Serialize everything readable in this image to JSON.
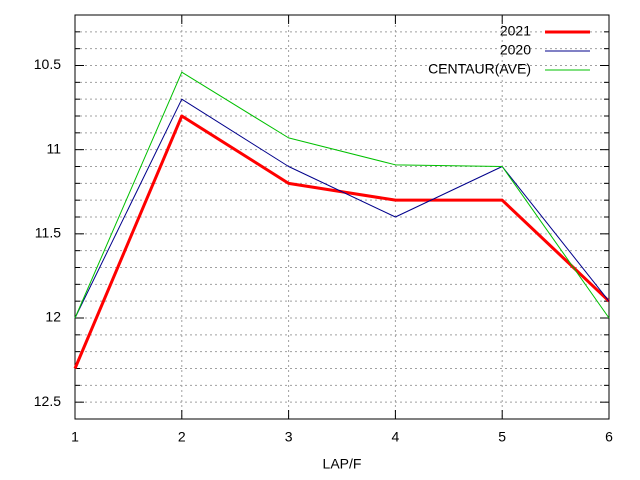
{
  "chart_data": {
    "type": "line",
    "x_label": "LAP/F",
    "x": [
      1,
      2,
      3,
      4,
      5,
      6
    ],
    "series": [
      {
        "name": "2021",
        "color": "#ff0000",
        "width": 3,
        "values": [
          12.3,
          10.8,
          11.2,
          11.3,
          11.3,
          11.9
        ]
      },
      {
        "name": "2020",
        "color": "#00008b",
        "width": 1,
        "values": [
          12.0,
          10.7,
          11.1,
          11.4,
          11.1,
          11.9
        ]
      },
      {
        "name": "CENTAUR(AVE)",
        "color": "#00c000",
        "width": 1,
        "values": [
          12.0,
          10.54,
          10.93,
          11.09,
          11.1,
          12.0
        ]
      }
    ],
    "xlim": [
      1,
      6
    ],
    "xticks": [
      1,
      2,
      3,
      4,
      5,
      6
    ],
    "ylim": [
      10.2,
      12.6
    ],
    "y_reversed": true,
    "yticks": [
      10.5,
      11,
      11.5,
      12,
      12.5
    ],
    "yminorticks": [
      10.3,
      10.4,
      10.6,
      10.7,
      10.8,
      10.9,
      11.1,
      11.2,
      11.3,
      11.4,
      11.6,
      11.7,
      11.8,
      11.9,
      12.1,
      12.2,
      12.3,
      12.4
    ],
    "grid": true,
    "legend": "top-right"
  }
}
